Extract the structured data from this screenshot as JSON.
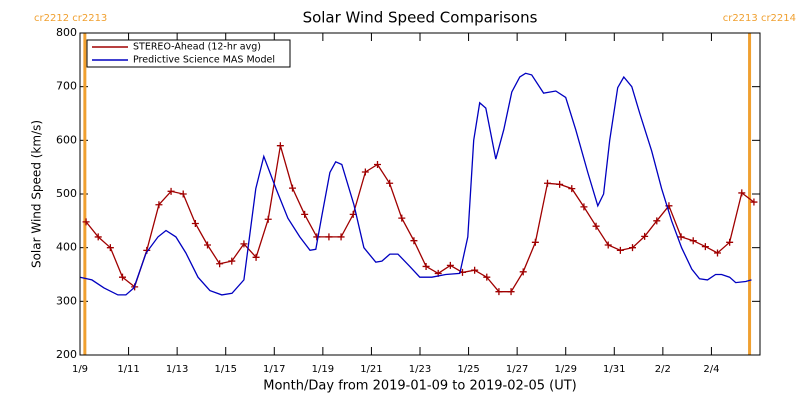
{
  "chart_data": {
    "type": "line",
    "title": "Solar Wind Speed Comparisons",
    "x_label": "Month/Day from 2019-01-09 to 2019-02-05 (UT)",
    "y_label": "Solar Wind Speed (km/s)",
    "xlim": [
      0,
      28
    ],
    "ylim": [
      200,
      800
    ],
    "xticks": [
      {
        "value": 0,
        "label": "1/9"
      },
      {
        "value": 2,
        "label": "1/11"
      },
      {
        "value": 4,
        "label": "1/13"
      },
      {
        "value": 6,
        "label": "1/15"
      },
      {
        "value": 8,
        "label": "1/17"
      },
      {
        "value": 10,
        "label": "1/19"
      },
      {
        "value": 12,
        "label": "1/21"
      },
      {
        "value": 14,
        "label": "1/23"
      },
      {
        "value": 16,
        "label": "1/25"
      },
      {
        "value": 18,
        "label": "1/27"
      },
      {
        "value": 20,
        "label": "1/29"
      },
      {
        "value": 22,
        "label": "1/31"
      },
      {
        "value": 24,
        "label": "2/2"
      },
      {
        "value": 26,
        "label": "2/4"
      }
    ],
    "yticks": [
      200,
      300,
      400,
      500,
      600,
      700,
      800
    ],
    "legend": "upper left",
    "annotations": [
      {
        "x": 0.2,
        "label": "cr2212 cr2213",
        "side": "left",
        "color": "#f0a030"
      },
      {
        "x": 27.57,
        "label": "cr2213 cr2214",
        "side": "right",
        "color": "#f0a030"
      }
    ],
    "series": [
      {
        "name": "STEREO-Ahead (12-hr avg)",
        "color": "#a00000",
        "marker": "+",
        "x": [
          0.25,
          0.75,
          1.25,
          1.75,
          2.25,
          2.75,
          3.25,
          3.75,
          4.25,
          4.75,
          5.25,
          5.75,
          6.25,
          6.75,
          7.25,
          7.75,
          8.25,
          8.75,
          9.25,
          9.75,
          10.25,
          10.75,
          11.25,
          11.75,
          12.25,
          12.75,
          13.25,
          13.75,
          14.25,
          14.75,
          15.25,
          15.75,
          16.25,
          16.75,
          17.25,
          17.75,
          18.25,
          18.75,
          19.25,
          19.75,
          20.25,
          20.75,
          21.25,
          21.75,
          22.25,
          22.75,
          23.25,
          23.75,
          24.25,
          24.75,
          25.25,
          25.75,
          26.25,
          26.75,
          27.25,
          27.75
        ],
        "values": [
          448,
          420,
          400,
          345,
          327,
          395,
          480,
          505,
          500,
          445,
          405,
          370,
          375,
          407,
          382,
          453,
          590,
          511,
          462,
          420,
          420,
          420,
          462,
          541,
          555,
          520,
          455,
          413,
          365,
          352,
          367,
          354,
          358,
          345,
          318,
          318,
          355,
          410,
          520,
          518,
          510,
          476,
          440,
          405,
          395,
          400,
          421,
          450,
          478,
          420,
          413,
          402,
          390,
          410,
          502,
          485
        ]
      },
      {
        "name": "Predictive Science MAS Model",
        "color": "#0000c0",
        "x": [
          0,
          0.49,
          0.99,
          1.56,
          1.89,
          2.22,
          2.72,
          3.21,
          3.54,
          3.95,
          4.36,
          4.86,
          5.35,
          5.84,
          6.26,
          6.75,
          7.24,
          7.57,
          8.07,
          8.56,
          9.05,
          9.47,
          9.71,
          9.96,
          10.29,
          10.53,
          10.78,
          11.28,
          11.69,
          12.18,
          12.43,
          12.76,
          13.09,
          13.58,
          13.99,
          14.49,
          15.06,
          15.64,
          15.97,
          16.21,
          16.46,
          16.71,
          17.12,
          17.45,
          17.78,
          18.11,
          18.35,
          18.6,
          19.09,
          19.59,
          20,
          20.41,
          20.91,
          21.32,
          21.56,
          21.81,
          22.14,
          22.39,
          22.72,
          23.05,
          23.54,
          23.95,
          24.36,
          24.77,
          25.19,
          25.51,
          25.84,
          26.17,
          26.42,
          26.75,
          27,
          27.41,
          27.65
        ],
        "values": [
          345,
          340,
          325,
          312,
          312,
          325,
          390,
          420,
          432,
          420,
          390,
          345,
          320,
          312,
          315,
          340,
          510,
          570,
          510,
          455,
          420,
          395,
          397,
          460,
          540,
          560,
          555,
          480,
          400,
          373,
          375,
          388,
          388,
          365,
          345,
          345,
          350,
          352,
          420,
          600,
          670,
          660,
          565,
          620,
          690,
          718,
          725,
          722,
          688,
          692,
          680,
          620,
          540,
          478,
          500,
          600,
          698,
          718,
          700,
          650,
          580,
          510,
          450,
          400,
          360,
          342,
          340,
          350,
          350,
          345,
          335,
          337,
          340
        ]
      }
    ]
  }
}
